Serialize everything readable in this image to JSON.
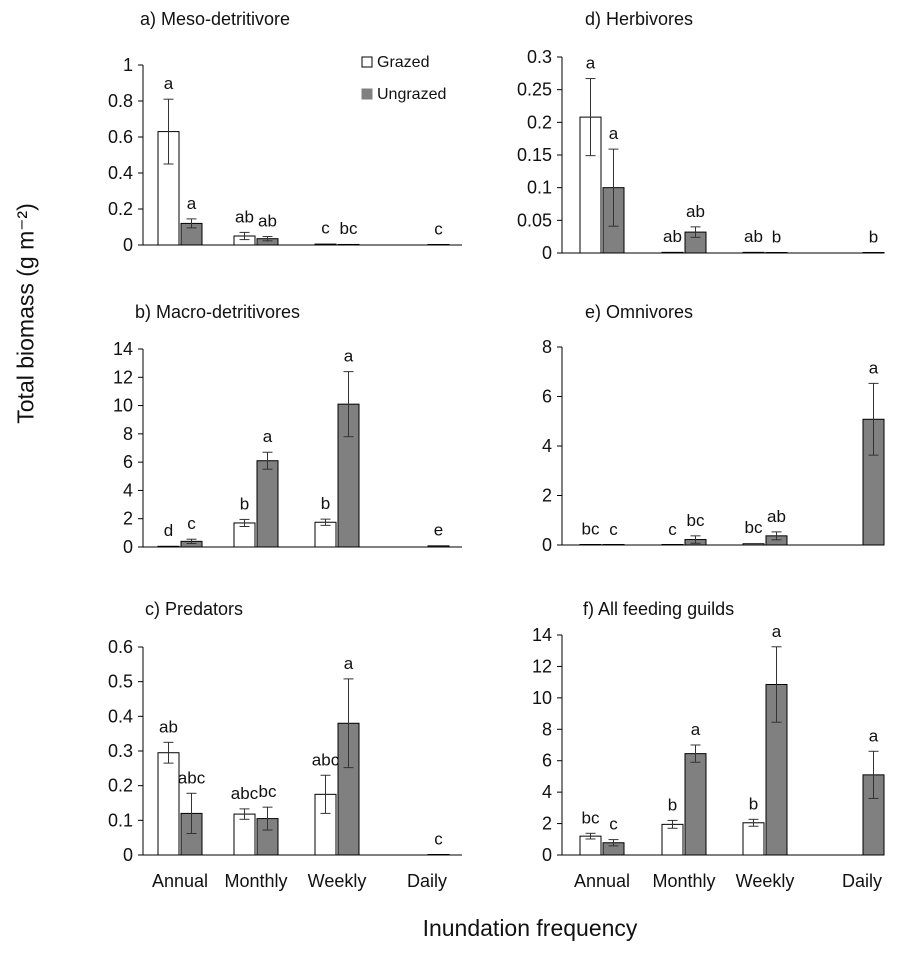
{
  "figure": {
    "ylabel": "Total biomass (g m⁻²)",
    "xlabel": "Inundation frequency",
    "categories": [
      "Annual",
      "Monthly",
      "Weekly",
      "Daily"
    ],
    "legend": {
      "grazed": "Grazed",
      "ungrazed": "Ungrazed",
      "placement": "top-right of panel a"
    },
    "colors": {
      "grazed_fill": "#ffffff",
      "ungrazed_fill": "#808080",
      "stroke": "#000000"
    }
  },
  "chart_data": [
    {
      "panel": "a",
      "type": "bar",
      "title": "a) Meso-detritivore",
      "categories": [
        "Annual",
        "Monthly",
        "Weekly",
        "Daily"
      ],
      "ylim": [
        0,
        1
      ],
      "yticks": [
        "0",
        "0.2",
        "0.4",
        "0.6",
        "0.8",
        "1"
      ],
      "ytick_values": [
        0,
        0.2,
        0.4,
        0.6,
        0.8,
        1
      ],
      "series": [
        {
          "name": "Grazed",
          "values": [
            0.63,
            0.05,
            0.005,
            null
          ],
          "errors": [
            0.18,
            0.02,
            0.003,
            null
          ],
          "letters": [
            "a",
            "ab",
            "c",
            ""
          ]
        },
        {
          "name": "Ungrazed",
          "values": [
            0.12,
            0.035,
            0.003,
            0.002
          ],
          "errors": [
            0.025,
            0.012,
            0.002,
            0.001
          ],
          "letters": [
            "a",
            "ab",
            "bc",
            "c"
          ]
        }
      ]
    },
    {
      "panel": "b",
      "type": "bar",
      "title": "b) Macro-detritivores",
      "categories": [
        "Annual",
        "Monthly",
        "Weekly",
        "Daily"
      ],
      "ylim": [
        0,
        14
      ],
      "yticks": [
        "0",
        "2",
        "4",
        "6",
        "8",
        "10",
        "12",
        "14"
      ],
      "ytick_values": [
        0,
        2,
        4,
        6,
        8,
        10,
        12,
        14
      ],
      "series": [
        {
          "name": "Grazed",
          "values": [
            0.05,
            1.7,
            1.75,
            null
          ],
          "errors": [
            0.02,
            0.25,
            0.22,
            null
          ],
          "letters": [
            "d",
            "b",
            "b",
            ""
          ]
        },
        {
          "name": "Ungrazed",
          "values": [
            0.4,
            6.1,
            10.1,
            0.08
          ],
          "errors": [
            0.15,
            0.6,
            2.3,
            0.04
          ],
          "letters": [
            "c",
            "a",
            "a",
            "e"
          ]
        }
      ]
    },
    {
      "panel": "c",
      "type": "bar",
      "title": "c) Predators",
      "categories": [
        "Annual",
        "Monthly",
        "Weekly",
        "Daily"
      ],
      "ylim": [
        0,
        0.6
      ],
      "yticks": [
        "0",
        "0.1",
        "0.2",
        "0.3",
        "0.4",
        "0.5",
        "0.6"
      ],
      "ytick_values": [
        0,
        0.1,
        0.2,
        0.3,
        0.4,
        0.5,
        0.6
      ],
      "series": [
        {
          "name": "Grazed",
          "values": [
            0.295,
            0.118,
            0.175,
            null
          ],
          "errors": [
            0.03,
            0.015,
            0.055,
            null
          ],
          "letters": [
            "ab",
            "abc",
            "abc",
            ""
          ]
        },
        {
          "name": "Ungrazed",
          "values": [
            0.12,
            0.105,
            0.38,
            0.001
          ],
          "errors": [
            0.058,
            0.033,
            0.128,
            0.001
          ],
          "letters": [
            "abc",
            "bc",
            "a",
            "c"
          ]
        }
      ]
    },
    {
      "panel": "d",
      "type": "bar",
      "title": "d) Herbivores",
      "categories": [
        "Annual",
        "Monthly",
        "Weekly",
        "Daily"
      ],
      "ylim": [
        0,
        0.3
      ],
      "yticks": [
        "0",
        "0.05",
        "0.1",
        "0.15",
        "0.2",
        "0.25",
        "0.3"
      ],
      "ytick_values": [
        0,
        0.05,
        0.1,
        0.15,
        0.2,
        0.25,
        0.3
      ],
      "series": [
        {
          "name": "Grazed",
          "values": [
            0.208,
            0.001,
            0.001,
            null
          ],
          "errors": [
            0.059,
            0.0005,
            0.0005,
            null
          ],
          "letters": [
            "a",
            "ab",
            "ab",
            ""
          ]
        },
        {
          "name": "Ungrazed",
          "values": [
            0.1,
            0.032,
            0.0005,
            0.0003
          ],
          "errors": [
            0.059,
            0.008,
            0.0003,
            0.0002
          ],
          "letters": [
            "a",
            "ab",
            "b",
            "b"
          ]
        }
      ]
    },
    {
      "panel": "e",
      "type": "bar",
      "title": "e) Omnivores",
      "categories": [
        "Annual",
        "Monthly",
        "Weekly",
        "Daily"
      ],
      "ylim": [
        0,
        8
      ],
      "yticks": [
        "0",
        "2",
        "4",
        "6",
        "8"
      ],
      "ytick_values": [
        0,
        2,
        4,
        6,
        8
      ],
      "series": [
        {
          "name": "Grazed",
          "values": [
            0.01,
            0.005,
            0.05,
            null
          ],
          "errors": [
            0.005,
            0.003,
            0.03,
            null
          ],
          "letters": [
            "bc",
            "c",
            "bc",
            ""
          ]
        },
        {
          "name": "Ungrazed",
          "values": [
            0.005,
            0.22,
            0.37,
            5.08
          ],
          "errors": [
            0.003,
            0.15,
            0.16,
            1.45
          ],
          "letters": [
            "c",
            "bc",
            "ab",
            "a"
          ]
        }
      ]
    },
    {
      "panel": "f",
      "type": "bar",
      "title": "f) All feeding guilds",
      "categories": [
        "Annual",
        "Monthly",
        "Weekly",
        "Daily"
      ],
      "ylim": [
        0,
        14
      ],
      "yticks": [
        "0",
        "2",
        "4",
        "6",
        "8",
        "10",
        "12",
        "14"
      ],
      "ytick_values": [
        0,
        2,
        4,
        6,
        8,
        10,
        12,
        14
      ],
      "series": [
        {
          "name": "Grazed",
          "values": [
            1.2,
            1.95,
            2.05,
            null
          ],
          "errors": [
            0.18,
            0.25,
            0.22,
            null
          ],
          "letters": [
            "bc",
            "b",
            "b",
            ""
          ]
        },
        {
          "name": "Ungrazed",
          "values": [
            0.78,
            6.45,
            10.85,
            5.1
          ],
          "errors": [
            0.2,
            0.55,
            2.4,
            1.5
          ],
          "letters": [
            "c",
            "a",
            "a",
            "a"
          ]
        }
      ]
    }
  ]
}
